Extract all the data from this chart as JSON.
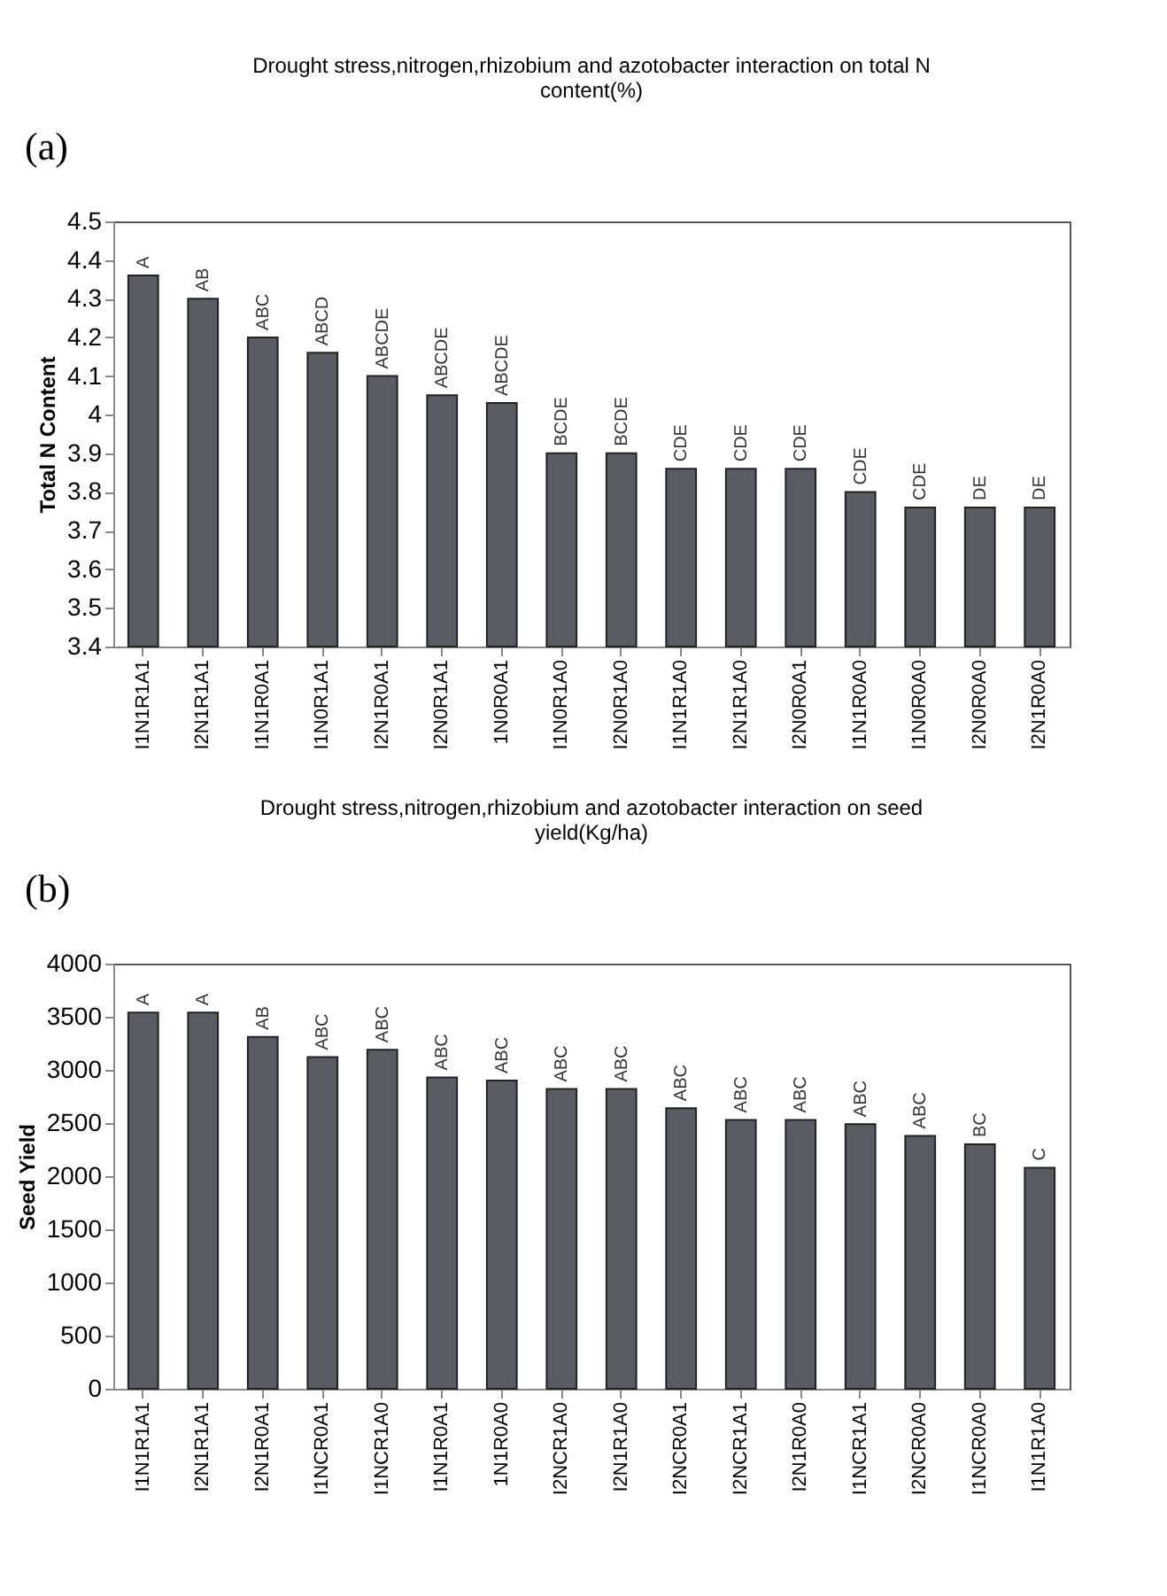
{
  "chart_data": [
    {
      "type": "bar",
      "title": "Drought stress,nitrogen,rhizobium and azotobacter interaction on total N content(%)",
      "ylabel": "Total N Content",
      "annotations": [
        "(a)"
      ],
      "categories": [
        "I1N1R1A1",
        "I2N1R1A1",
        "I1N1R0A1",
        "I1N0R1A1",
        "I2N1R0A1",
        "I2N0R1A1",
        "1N0R0A1",
        "I1N0R1A0",
        "I2N0R1A0",
        "I1N1R1A0",
        "I2N1R1A0",
        "I2N0R0A1",
        "I1N1R0A0",
        "I1N0R0A0",
        "I2N0R0A0",
        "I2N1R0A0"
      ],
      "values": [
        4.36,
        4.3,
        4.2,
        4.16,
        4.1,
        4.05,
        4.03,
        3.9,
        3.9,
        3.86,
        3.86,
        3.86,
        3.8,
        3.76,
        3.76,
        3.76
      ],
      "value_labels": [
        "A",
        "AB",
        "ABC",
        "ABCD",
        "ABCDE",
        "ABCDE",
        "ABCDE",
        "BCDE",
        "BCDE",
        "CDE",
        "CDE",
        "CDE",
        "CDE",
        "CDE",
        "DE",
        "DE"
      ],
      "color": "#595d63",
      "ylim": [
        3.4,
        4.5
      ],
      "yticks": [
        3.4,
        3.5,
        3.6,
        3.7,
        3.8,
        3.9,
        4,
        4.1,
        4.2,
        4.3,
        4.4,
        4.5
      ],
      "grid": false
    },
    {
      "type": "bar",
      "title": "Drought stress,nitrogen,rhizobium and azotobacter interaction on seed yield(Kg/ha)",
      "ylabel": "Seed Yield",
      "annotations": [
        "(b)"
      ],
      "categories": [
        "I1N1R1A1",
        "I2N1R1A1",
        "I2N1R0A1",
        "I1NCR0A1",
        "I1NCR1A0",
        "I1N1R0A1",
        "1N1R0A0",
        "I2NCR1A0",
        "I2N1R1A0",
        "I2NCR0A1",
        "I2NCR1A1",
        "I2N1R0A0",
        "I1NCR1A1",
        "I2NCR0A0",
        "I1NCR0A0",
        "I1N1R1A0"
      ],
      "values": [
        3540,
        3540,
        3310,
        3120,
        3190,
        2930,
        2900,
        2820,
        2820,
        2640,
        2530,
        2530,
        2490,
        2380,
        2300,
        2080
      ],
      "value_labels": [
        "A",
        "A",
        "AB",
        "ABC",
        "ABC",
        "ABC",
        "ABC",
        "ABC",
        "ABC",
        "ABC",
        "ABC",
        "ABC",
        "ABC",
        "ABC",
        "BC",
        "C"
      ],
      "color": "#595d63",
      "ylim": [
        0,
        4000
      ],
      "yticks": [
        0,
        500,
        1000,
        1500,
        2000,
        2500,
        3000,
        3500,
        4000
      ],
      "grid": false
    }
  ]
}
